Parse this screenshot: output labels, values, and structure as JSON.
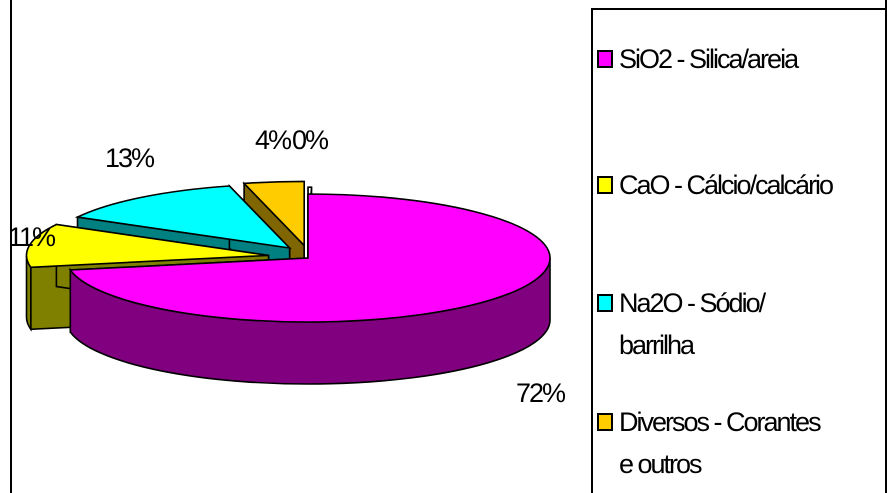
{
  "chart_data": {
    "type": "pie",
    "style": "3d-exploded",
    "categories": [
      "SiO2 - Silica/areia",
      "CaO - Cálcio/calcário",
      "Na2O - Sódio/ barrilha",
      "Diversos - Corantes e outros",
      ""
    ],
    "values": [
      72,
      11,
      13,
      4,
      0
    ],
    "data_labels": [
      "72%",
      "11%",
      "13%",
      "4%",
      "0%"
    ],
    "colors": [
      "#ff00ff",
      "#ffff00",
      "#00ffff",
      "#ffcc00",
      "#ffffff"
    ],
    "side_colors": [
      "#800080",
      "#808000",
      "#008080",
      "#806600",
      "#c0c0c0"
    ],
    "legend_position": "right"
  },
  "legend": {
    "lines": [
      [
        "SiO2 - Silica/areia"
      ],
      [
        "CaO - Cálcio/calcário"
      ],
      [
        "Na2O - Sódio/",
        "barrilha"
      ],
      [
        "Diversos - Corantes",
        "e outros"
      ]
    ]
  }
}
